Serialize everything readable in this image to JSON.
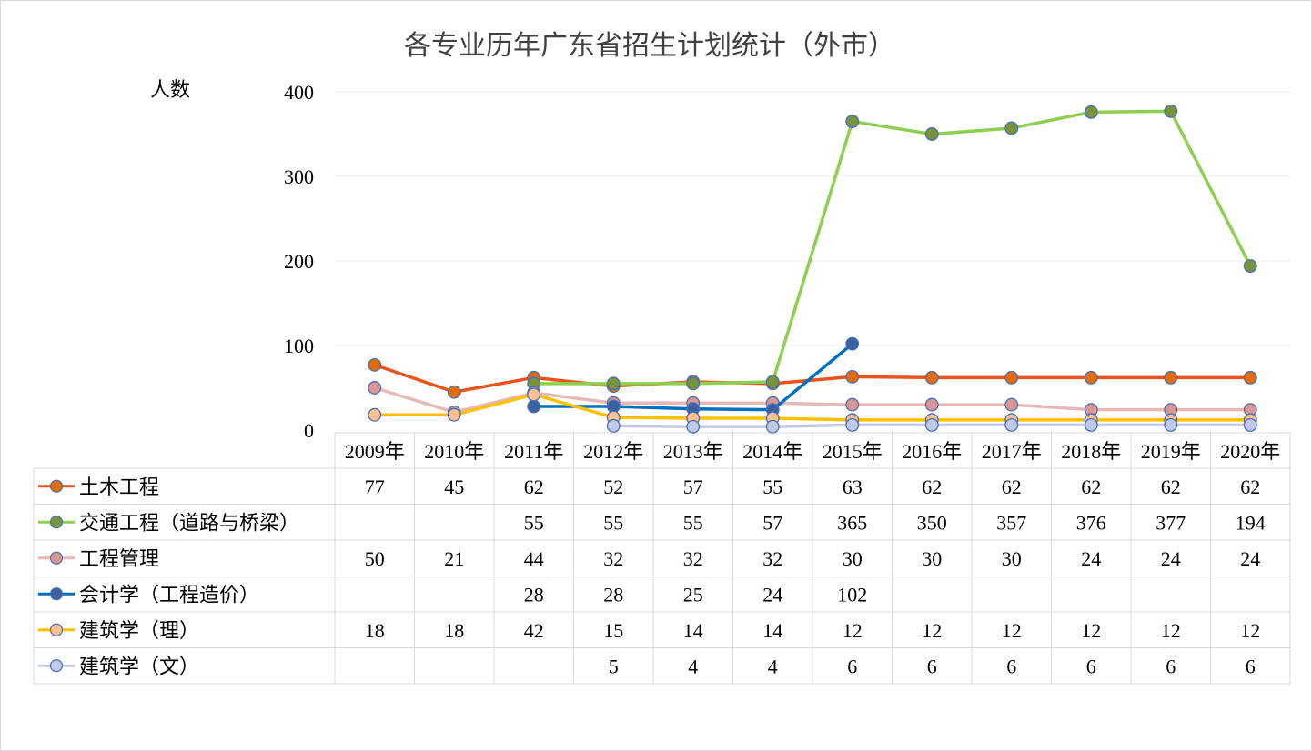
{
  "chart_data": {
    "type": "line",
    "title": "各专业历年广东省招生计划统计（外市）",
    "ylabel": "人数",
    "xlabel": "",
    "ylim": [
      0,
      400
    ],
    "yticks": [
      0,
      100,
      200,
      300,
      400
    ],
    "grid": true,
    "legend": "data-table-left",
    "categories": [
      "2009年",
      "2010年",
      "2011年",
      "2012年",
      "2013年",
      "2014年",
      "2015年",
      "2016年",
      "2017年",
      "2018年",
      "2019年",
      "2020年"
    ],
    "series": [
      {
        "name": "土木工程",
        "line_color": "#E9531E",
        "marker_color": "#E36C09",
        "values": [
          77,
          45,
          62,
          52,
          57,
          55,
          63,
          62,
          62,
          62,
          62,
          62
        ]
      },
      {
        "name": "交通工程（道路与桥梁）",
        "line_color": "#8DCF50",
        "marker_color": "#77933C",
        "values": [
          null,
          null,
          55,
          55,
          55,
          57,
          365,
          350,
          357,
          376,
          377,
          194
        ]
      },
      {
        "name": "工程管理",
        "line_color": "#E6B9B8",
        "marker_color": "#D99694",
        "values": [
          50,
          21,
          44,
          32,
          32,
          32,
          30,
          30,
          30,
          24,
          24,
          24
        ]
      },
      {
        "name": "会计学（工程造价）",
        "line_color": "#0070C0",
        "marker_color": "#3A62A0",
        "values": [
          null,
          null,
          28,
          28,
          25,
          24,
          102,
          null,
          null,
          null,
          null,
          null
        ]
      },
      {
        "name": "建筑学（理）",
        "line_color": "#FFC000",
        "marker_color": "#FAC090",
        "values": [
          18,
          18,
          42,
          15,
          14,
          14,
          12,
          12,
          12,
          12,
          12,
          12
        ]
      },
      {
        "name": "建筑学（文）",
        "line_color": "#C5CCE6",
        "marker_color": "#C0C9E6",
        "values": [
          null,
          null,
          null,
          5,
          4,
          4,
          6,
          6,
          6,
          6,
          6,
          6
        ]
      }
    ]
  }
}
